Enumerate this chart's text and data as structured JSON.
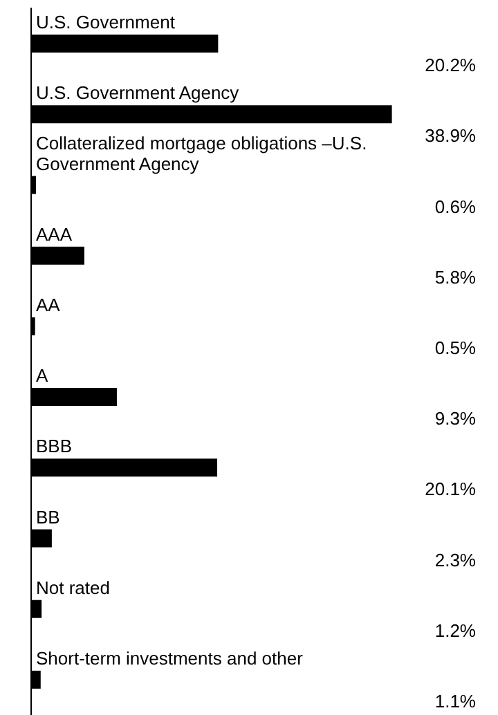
{
  "chart_data": {
    "type": "bar",
    "orientation": "horizontal",
    "categories": [
      "U.S. Government",
      "U.S. Government Agency",
      "Collateralized mortgage obligations –U.S. Government Agency",
      "AAA",
      "AA",
      "A",
      "BBB",
      "BB",
      "Not rated",
      "Short-term investments and other"
    ],
    "values": [
      20.2,
      38.9,
      0.6,
      5.8,
      0.5,
      9.3,
      20.1,
      2.3,
      1.2,
      1.1
    ],
    "value_labels": [
      "20.2%",
      "38.9%",
      "0.6%",
      "5.8%",
      "0.5%",
      "9.3%",
      "20.1%",
      "2.3%",
      "1.2%",
      "1.1%"
    ],
    "color": "#000000"
  }
}
